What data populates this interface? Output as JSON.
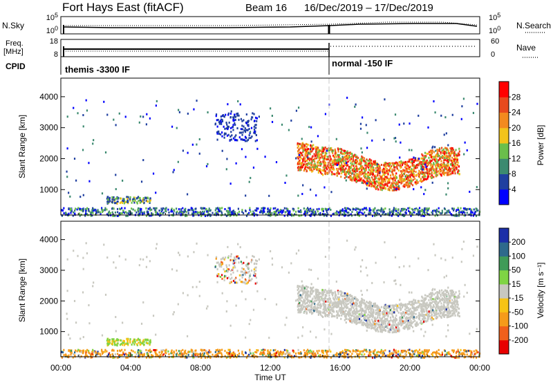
{
  "header": {
    "title": "Fort Hays East (fitACF)",
    "beam": "Beam 16",
    "dates": "16/Dec/2019 – 17/Dec/2019"
  },
  "panels": {
    "nsky": {
      "label": "N.Sky",
      "left_ticks": [
        "10^5",
        "10^0"
      ],
      "right_ticks": [
        "10^5",
        "10^0"
      ],
      "right_label": "N.Search"
    },
    "freq": {
      "label_line1": "Freq.",
      "label_line2": "[MHz]",
      "left_ticks": [
        "18",
        "8"
      ],
      "right_ticks": [
        "60",
        "0"
      ],
      "right_label": "Nave"
    },
    "cpid": {
      "label": "CPID",
      "segments": [
        "themis -3300 IF",
        "normal -150 IF"
      ]
    }
  },
  "chart_data": [
    {
      "type": "heatmap",
      "name": "power",
      "ylabel": "Slant Range [km]",
      "xlabel": "",
      "y_ticks": [
        "1000",
        "2000",
        "3000",
        "4000"
      ],
      "ylim": [
        180,
        4600
      ],
      "xlim_hours": [
        0,
        24
      ],
      "colorbar": {
        "label": "Power [dB]",
        "ticks": [
          "4",
          "8",
          "12",
          "16",
          "20",
          "24",
          "28"
        ],
        "colors": [
          "#0000ff",
          "#2040a0",
          "#3c8a70",
          "#6abf4b",
          "#f2c31a",
          "#f38a1f",
          "#e84a1e",
          "#ff0000"
        ]
      },
      "echo_regions": [
        {
          "t": [
            13.5,
            22.8
          ],
          "r": [
            1100,
            2500
          ],
          "level": "high"
        },
        {
          "t": [
            8.8,
            11.0
          ],
          "r": [
            2600,
            3500
          ],
          "level": "low"
        },
        {
          "t": [
            2.6,
            5.1
          ],
          "r": [
            550,
            800
          ],
          "level": "mid"
        },
        {
          "t": [
            0.0,
            24.0
          ],
          "r": [
            180,
            450
          ],
          "level": "near"
        }
      ]
    },
    {
      "type": "heatmap",
      "name": "velocity",
      "ylabel": "Slant Range [km]",
      "xlabel": "Time UT",
      "x_ticks": [
        "00:00",
        "04:00",
        "08:00",
        "12:00",
        "16:00",
        "20:00",
        "00:00"
      ],
      "y_ticks": [
        "1000",
        "2000",
        "3000",
        "4000"
      ],
      "ylim": [
        180,
        4600
      ],
      "xlim_hours": [
        0,
        24
      ],
      "colorbar": {
        "label": "Velocity [m s⁻¹]",
        "ticks": [
          "200",
          "100",
          "50",
          "15",
          "-15",
          "-50",
          "-100",
          "-200"
        ],
        "colors": [
          "#1c2fa8",
          "#2e6a8c",
          "#3f9b58",
          "#7fd444",
          "#c8c8c0",
          "#f7c315",
          "#f59b1b",
          "#f0601b",
          "#e80000"
        ]
      }
    }
  ]
}
